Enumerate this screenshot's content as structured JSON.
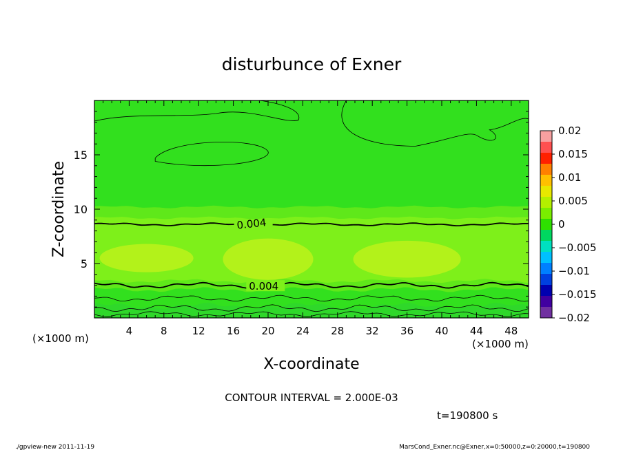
{
  "chart_data": {
    "type": "heatmap",
    "title": "disturbunce of Exner",
    "xlabel": "X-coordinate",
    "ylabel": "Z-coordinate",
    "x_unit_label": "(×1000 m)",
    "y_unit_label": "(×1000 m)",
    "xlim": [
      0,
      50
    ],
    "ylim": [
      0,
      20
    ],
    "x_ticks": [
      "4",
      "8",
      "12",
      "16",
      "20",
      "24",
      "28",
      "32",
      "36",
      "40",
      "44",
      "48"
    ],
    "x_tick_values": [
      4,
      8,
      12,
      16,
      20,
      24,
      28,
      32,
      36,
      40,
      44,
      48
    ],
    "y_ticks": [
      "5",
      "10",
      "15"
    ],
    "y_tick_values": [
      5,
      10,
      15
    ],
    "contour_labels": [
      {
        "text": "0.004",
        "x": 16.4,
        "z": 8.5
      },
      {
        "text": "0.004",
        "x": 17.8,
        "z": 2.9
      }
    ],
    "colorbar": {
      "labels": [
        "0.02",
        "0.015",
        "0.01",
        "0.005",
        "0",
        "−0.005",
        "−0.01",
        "−0.015",
        "−0.02"
      ],
      "values": [
        0.02,
        0.015,
        0.01,
        0.005,
        0,
        -0.005,
        -0.01,
        -0.015,
        -0.02
      ],
      "colors": [
        "#f7a0a0",
        "#ff5050",
        "#ff2000",
        "#ff8000",
        "#ffc000",
        "#e8e800",
        "#b4f000",
        "#7aee00",
        "#2ee000",
        "#00d860",
        "#00e0c0",
        "#00c0ff",
        "#0080ff",
        "#0040e0",
        "#0000b0",
        "#4000a0",
        "#7030a0"
      ]
    },
    "field_colors": {
      "base": "#32e01e",
      "band_mid": "#5fe81a",
      "band_high": "#7ef01a",
      "core": "#b3f21a",
      "bottom": "#2fd82a"
    },
    "contour_interval_text": "CONTOUR INTERVAL = 2.000E-03",
    "time_text": "t=190800 s"
  },
  "footer": {
    "left": "./gpview-new   2011-11-19",
    "right": "MarsCond_Exner.nc@Exner,x=0:50000,z=0:20000,t=190800"
  }
}
